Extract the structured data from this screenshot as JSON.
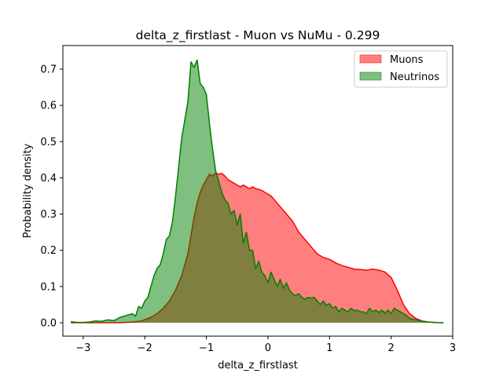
{
  "chart_data": {
    "type": "area",
    "title": "delta_z_firstlast - Muon vs NuMu - 0.299",
    "xlabel": "delta_z_firstlast",
    "ylabel": "Probability density",
    "xlim": [
      -3.33,
      3.0
    ],
    "ylim": [
      -0.037,
      0.765
    ],
    "xticks": [
      -3,
      -2,
      -1,
      0,
      1,
      2,
      3
    ],
    "xtick_labels": [
      "−3",
      "−2",
      "−1",
      "0",
      "1",
      "2",
      "3"
    ],
    "yticks": [
      0.0,
      0.1,
      0.2,
      0.3,
      0.4,
      0.5,
      0.6,
      0.7
    ],
    "ytick_labels": [
      "0.0",
      "0.1",
      "0.2",
      "0.3",
      "0.4",
      "0.5",
      "0.6",
      "0.7"
    ],
    "legend_position": "upper right",
    "grid": false,
    "series": [
      {
        "name": "Muons",
        "fill_color": "#ff0000",
        "fill_alpha": 0.5,
        "line_color": "#ff0000",
        "x": [
          -3.2,
          -3.0,
          -2.8,
          -2.6,
          -2.4,
          -2.2,
          -2.05,
          -1.9,
          -1.8,
          -1.7,
          -1.6,
          -1.5,
          -1.4,
          -1.3,
          -1.25,
          -1.2,
          -1.15,
          -1.1,
          -1.05,
          -1.0,
          -0.95,
          -0.9,
          -0.85,
          -0.8,
          -0.75,
          -0.7,
          -0.65,
          -0.6,
          -0.55,
          -0.5,
          -0.45,
          -0.4,
          -0.35,
          -0.3,
          -0.25,
          -0.2,
          -0.15,
          -0.1,
          -0.05,
          0.0,
          0.05,
          0.1,
          0.15,
          0.2,
          0.3,
          0.4,
          0.5,
          0.6,
          0.7,
          0.8,
          0.9,
          1.0,
          1.1,
          1.2,
          1.3,
          1.4,
          1.5,
          1.6,
          1.7,
          1.8,
          1.9,
          2.0,
          2.1,
          2.2,
          2.3,
          2.4,
          2.5,
          2.6,
          2.7,
          2.8,
          2.85
        ],
        "y": [
          0.0,
          0.0,
          0.0,
          0.0,
          0.0,
          0.002,
          0.005,
          0.015,
          0.025,
          0.04,
          0.06,
          0.09,
          0.13,
          0.19,
          0.24,
          0.29,
          0.33,
          0.36,
          0.38,
          0.395,
          0.41,
          0.405,
          0.413,
          0.41,
          0.412,
          0.405,
          0.395,
          0.39,
          0.385,
          0.38,
          0.375,
          0.38,
          0.375,
          0.37,
          0.375,
          0.37,
          0.368,
          0.365,
          0.36,
          0.355,
          0.35,
          0.34,
          0.33,
          0.32,
          0.3,
          0.28,
          0.25,
          0.23,
          0.21,
          0.19,
          0.18,
          0.175,
          0.165,
          0.158,
          0.153,
          0.148,
          0.147,
          0.145,
          0.148,
          0.145,
          0.14,
          0.125,
          0.09,
          0.05,
          0.025,
          0.012,
          0.005,
          0.002,
          0.001,
          0.0,
          0.0
        ]
      },
      {
        "name": "Neutrinos",
        "fill_color": "#008000",
        "fill_alpha": 0.5,
        "line_color": "#008000",
        "x": [
          -3.2,
          -3.1,
          -3.0,
          -2.9,
          -2.8,
          -2.7,
          -2.6,
          -2.5,
          -2.4,
          -2.3,
          -2.2,
          -2.15,
          -2.1,
          -2.05,
          -2.0,
          -1.95,
          -1.9,
          -1.85,
          -1.8,
          -1.75,
          -1.7,
          -1.65,
          -1.6,
          -1.55,
          -1.5,
          -1.45,
          -1.4,
          -1.35,
          -1.3,
          -1.25,
          -1.2,
          -1.15,
          -1.1,
          -1.05,
          -1.0,
          -0.95,
          -0.9,
          -0.85,
          -0.8,
          -0.75,
          -0.7,
          -0.65,
          -0.6,
          -0.55,
          -0.5,
          -0.45,
          -0.4,
          -0.35,
          -0.3,
          -0.25,
          -0.2,
          -0.15,
          -0.1,
          -0.05,
          0.0,
          0.05,
          0.1,
          0.15,
          0.2,
          0.25,
          0.3,
          0.35,
          0.4,
          0.45,
          0.5,
          0.55,
          0.6,
          0.65,
          0.7,
          0.75,
          0.8,
          0.85,
          0.9,
          0.95,
          1.0,
          1.05,
          1.1,
          1.15,
          1.2,
          1.25,
          1.3,
          1.35,
          1.4,
          1.45,
          1.5,
          1.55,
          1.6,
          1.65,
          1.7,
          1.75,
          1.8,
          1.85,
          1.9,
          1.95,
          2.0,
          2.05,
          2.1,
          2.15,
          2.2,
          2.25,
          2.3,
          2.4,
          2.5,
          2.6,
          2.7,
          2.8,
          2.85
        ],
        "y": [
          0.003,
          0.001,
          0.001,
          0.002,
          0.005,
          0.004,
          0.008,
          0.006,
          0.015,
          0.02,
          0.025,
          0.018,
          0.045,
          0.04,
          0.06,
          0.07,
          0.1,
          0.13,
          0.15,
          0.16,
          0.19,
          0.23,
          0.24,
          0.28,
          0.35,
          0.43,
          0.51,
          0.56,
          0.61,
          0.72,
          0.705,
          0.725,
          0.66,
          0.65,
          0.63,
          0.55,
          0.48,
          0.42,
          0.39,
          0.36,
          0.34,
          0.33,
          0.3,
          0.31,
          0.27,
          0.3,
          0.22,
          0.25,
          0.2,
          0.2,
          0.15,
          0.17,
          0.14,
          0.13,
          0.11,
          0.14,
          0.12,
          0.1,
          0.12,
          0.095,
          0.11,
          0.09,
          0.08,
          0.075,
          0.08,
          0.07,
          0.065,
          0.07,
          0.068,
          0.07,
          0.06,
          0.05,
          0.06,
          0.048,
          0.053,
          0.04,
          0.045,
          0.03,
          0.04,
          0.035,
          0.03,
          0.04,
          0.033,
          0.035,
          0.03,
          0.03,
          0.025,
          0.04,
          0.03,
          0.035,
          0.028,
          0.035,
          0.027,
          0.035,
          0.025,
          0.04,
          0.035,
          0.03,
          0.025,
          0.02,
          0.012,
          0.008,
          0.004,
          0.002,
          0.001,
          0.0,
          0.0
        ]
      }
    ]
  }
}
